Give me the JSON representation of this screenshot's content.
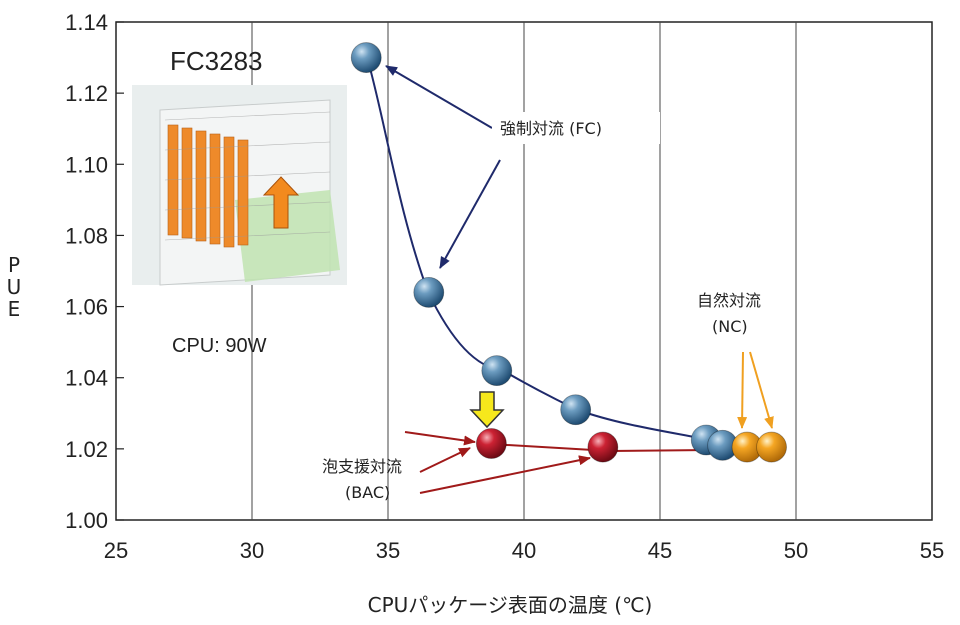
{
  "chart_data": {
    "type": "scatter",
    "title": "",
    "xlabel": "CPUパッケージ表面の温度 (℃)",
    "ylabel": "PUE",
    "xlim": [
      25,
      55
    ],
    "ylim": [
      1.0,
      1.14
    ],
    "xticks": [
      "25",
      "30",
      "35",
      "40",
      "45",
      "50",
      "55"
    ],
    "yticks": [
      "1.00",
      "1.02",
      "1.04",
      "1.06",
      "1.08",
      "1.10",
      "1.12",
      "1.14"
    ],
    "grid": "vertical",
    "series": [
      {
        "name": "強制対流 (FC)",
        "color": "#4a7fa8",
        "points": [
          [
            34.2,
            1.13
          ],
          [
            36.5,
            1.064
          ],
          [
            39.0,
            1.042
          ],
          [
            41.9,
            1.031
          ],
          [
            46.7,
            1.0225
          ],
          [
            47.3,
            1.021
          ]
        ]
      },
      {
        "name": "泡支援対流 (BAC)",
        "color": "#b5182a",
        "points": [
          [
            38.8,
            1.0215
          ],
          [
            42.9,
            1.0205
          ]
        ]
      },
      {
        "name": "自然対流 (NC)",
        "color": "#f0a020",
        "points": [
          [
            48.2,
            1.0205
          ],
          [
            49.1,
            1.0205
          ]
        ]
      }
    ],
    "annotations": {
      "fc_label": "強制対流 (FC)",
      "bac_label_1": "泡支援対流",
      "bac_label_2": "(BAC)",
      "nc_label_1": "自然対流",
      "nc_label_2": "(NC)",
      "model": "FC3283",
      "cpu": "CPU: 90W"
    }
  }
}
